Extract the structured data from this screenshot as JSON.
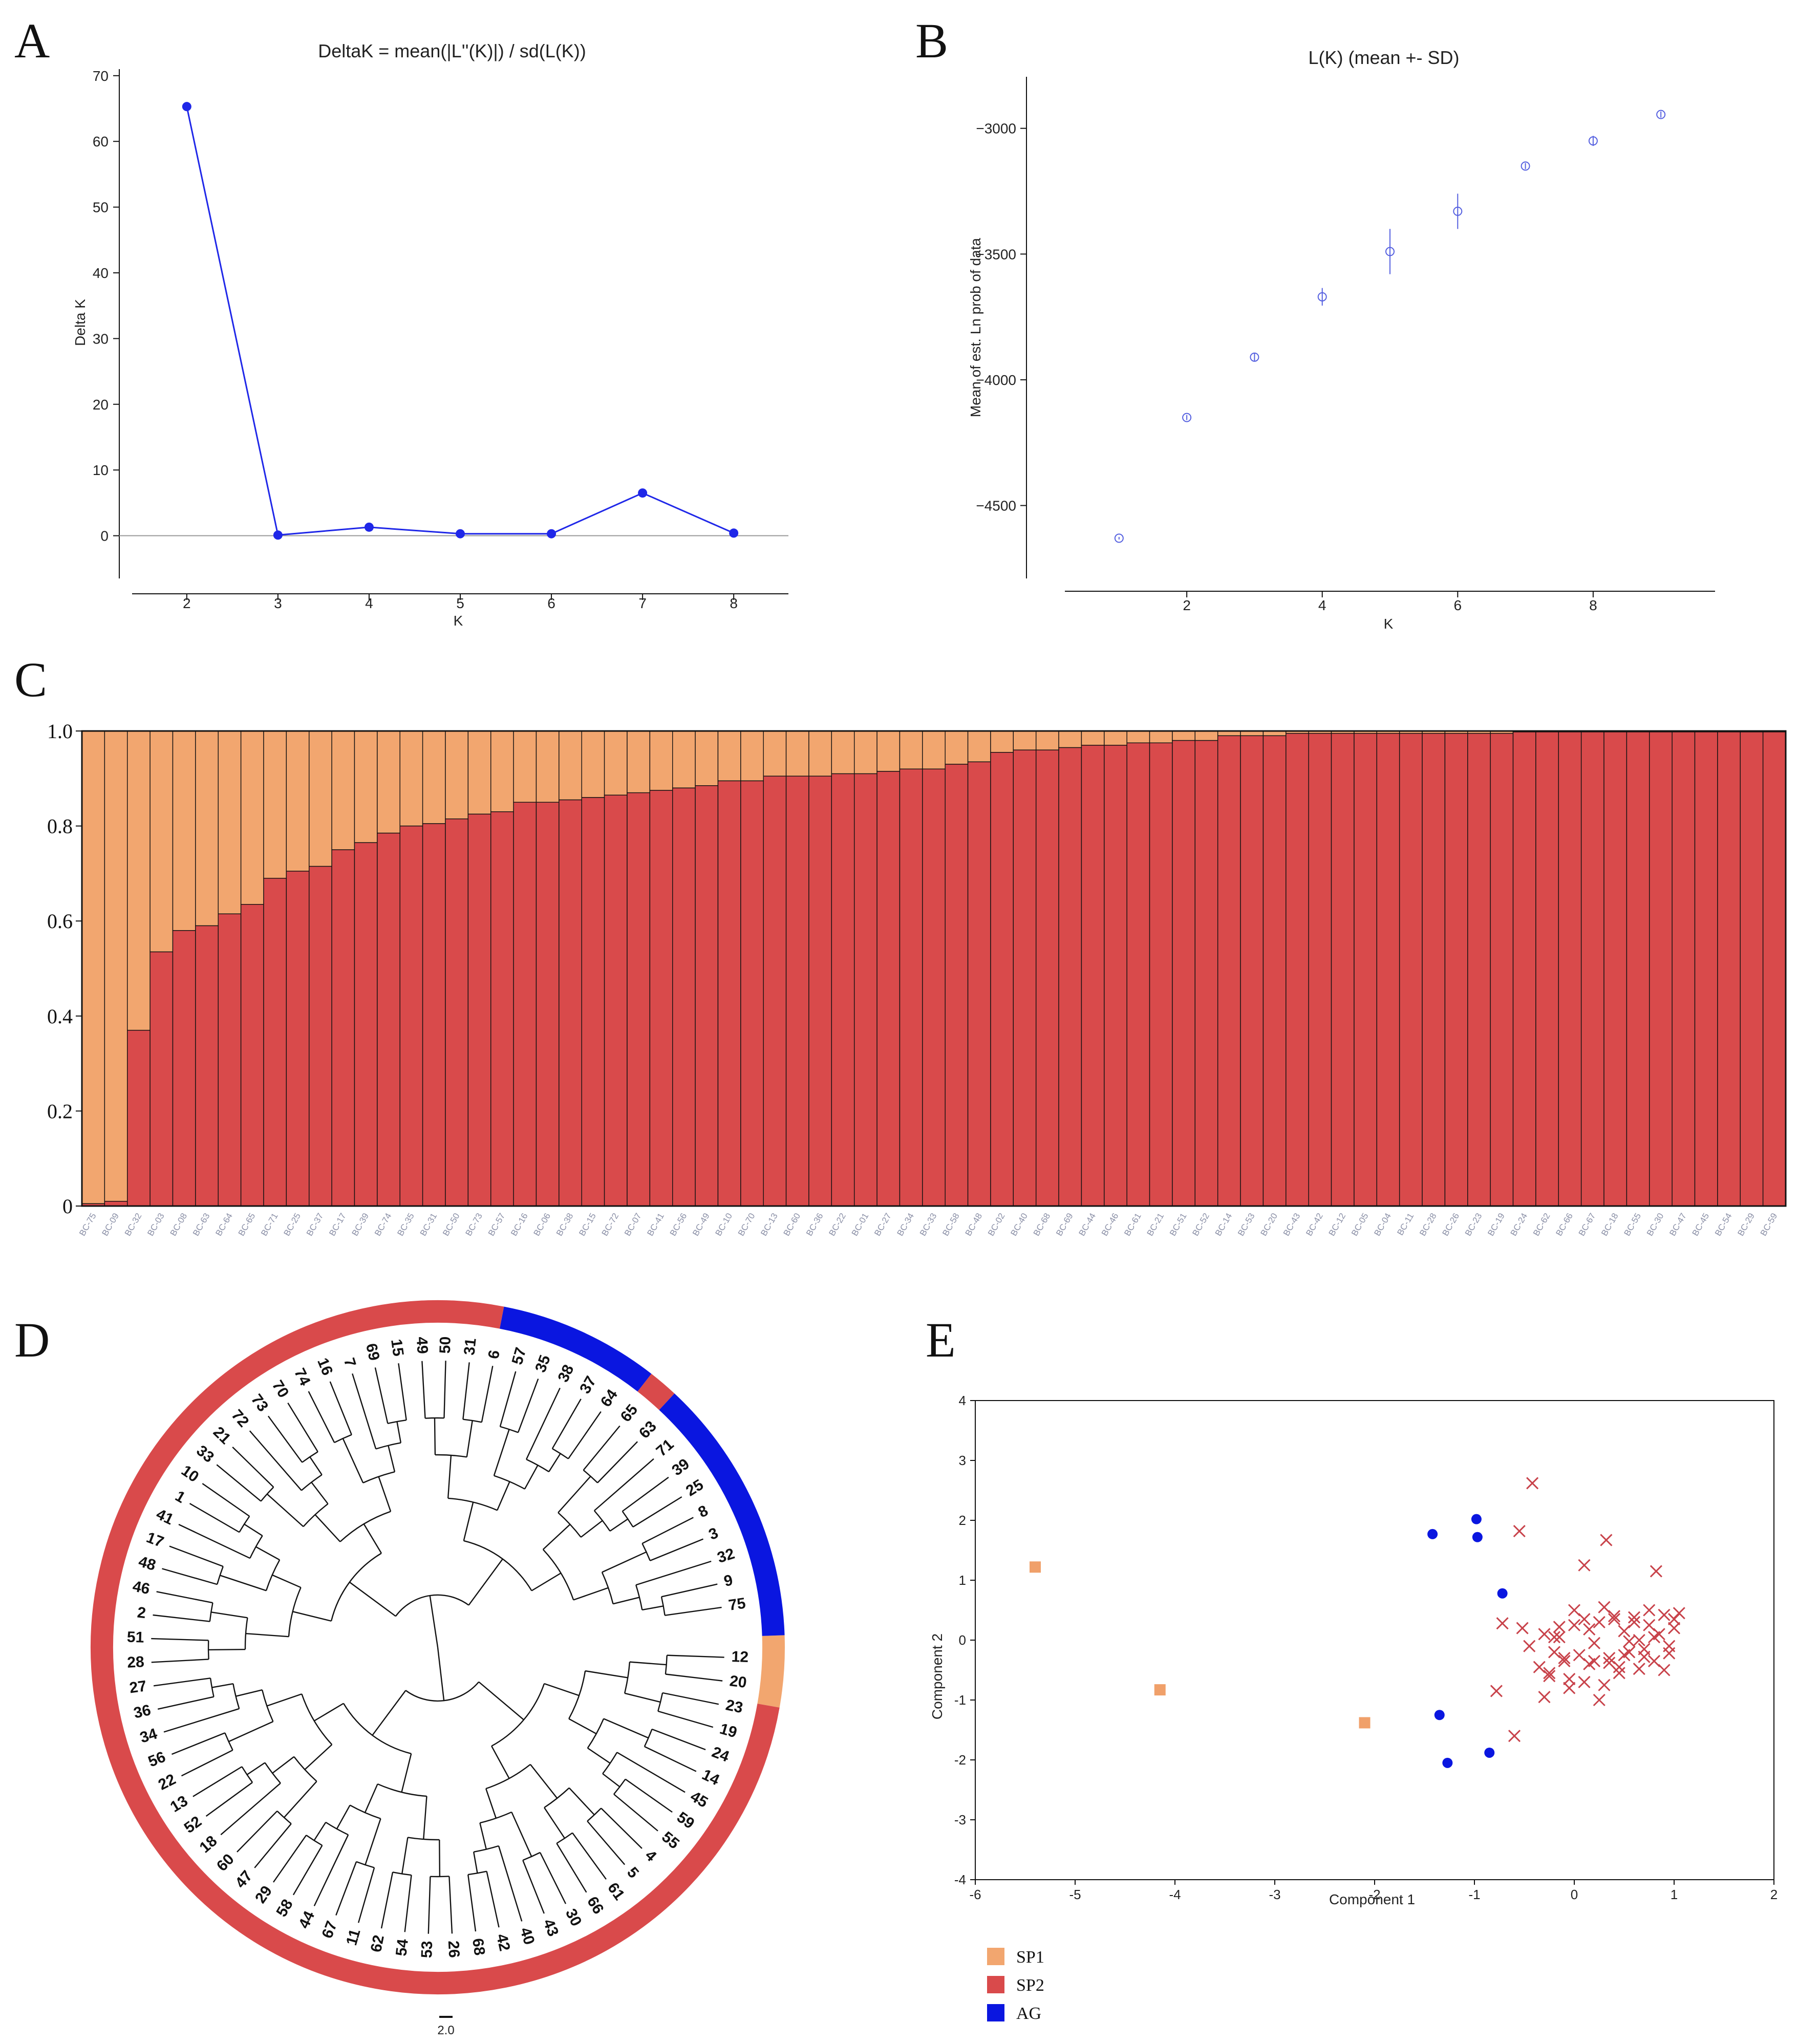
{
  "panel_labels": {
    "a": "A",
    "b": "B",
    "c": "C",
    "d": "D",
    "e": "E"
  },
  "colors": {
    "sp1": "#f2a66f",
    "sp2": "#d94a4b",
    "ag": "#0a16e0",
    "line_blue": "#1f27e8",
    "open_circle": "#5560e0",
    "cross": "#c8424a",
    "square": "#f0a06a"
  },
  "chart_data": [
    {
      "id": "A",
      "type": "line",
      "title": "DeltaK = mean(|L''(K)|) / sd(L(K))",
      "xlabel": "K",
      "ylabel": "Delta K",
      "x": [
        2,
        3,
        4,
        5,
        6,
        7,
        8
      ],
      "values": [
        65.3,
        0.1,
        1.3,
        0.3,
        0.3,
        6.5,
        0.4
      ],
      "xlim": [
        1.4,
        8.6
      ],
      "ylim": [
        -6.5,
        71
      ],
      "xticks": [
        "2",
        "3",
        "4",
        "5",
        "6",
        "7",
        "8"
      ],
      "yticks": [
        "0",
        "10",
        "20",
        "30",
        "40",
        "50",
        "60",
        "70"
      ]
    },
    {
      "id": "B",
      "type": "scatter",
      "title": "L(K) (mean +- SD)",
      "xlabel": "K",
      "ylabel": "Mean of est. Ln prob of data",
      "x": [
        1,
        2,
        3,
        4,
        5,
        6,
        7,
        8,
        9
      ],
      "values": [
        -4630,
        -4150,
        -3910,
        -3670,
        -3490,
        -3330,
        -3150,
        -3050,
        -2945
      ],
      "sd": [
        5,
        10,
        15,
        35,
        90,
        70,
        12,
        20,
        12
      ],
      "xlim": [
        0.2,
        9.8
      ],
      "ylim": [
        -4790,
        -2795
      ],
      "xticks": [
        "2",
        "4",
        "6",
        "8"
      ],
      "yticks": [
        "-3000",
        "-3500",
        "-4000",
        "-4500"
      ]
    },
    {
      "id": "C",
      "type": "bar",
      "stacked": true,
      "ylim": [
        0,
        1
      ],
      "yticks": [
        "0",
        "0.2",
        "0.4",
        "0.6",
        "0.8",
        "1.0"
      ],
      "series": [
        {
          "name": "SP2 (red)",
          "color": "#d94a4b"
        },
        {
          "name": "SP1 (orange)",
          "color": "#f2a66f"
        }
      ],
      "categories": [
        "BC-75",
        "BC-09",
        "BC-32",
        "BC-03",
        "BC-08",
        "BC-63",
        "BC-64",
        "BC-65",
        "BC-71",
        "BC-25",
        "BC-37",
        "BC-17",
        "BC-39",
        "BC-74",
        "BC-35",
        "BC-31",
        "BC-50",
        "BC-73",
        "BC-57",
        "BC-16",
        "BC-06",
        "BC-38",
        "BC-15",
        "BC-72",
        "BC-07",
        "BC-41",
        "BC-56",
        "BC-49",
        "BC-10",
        "BC-70",
        "BC-13",
        "BC-60",
        "BC-36",
        "BC-22",
        "BC-01",
        "BC-27",
        "BC-34",
        "BC-33",
        "BC-58",
        "BC-48",
        "BC-02",
        "BC-40",
        "BC-68",
        "BC-69",
        "BC-44",
        "BC-46",
        "BC-61",
        "BC-21",
        "BC-51",
        "BC-52",
        "BC-14",
        "BC-53",
        "BC-20",
        "BC-43",
        "BC-42",
        "BC-12",
        "BC-05",
        "BC-04",
        "BC-11",
        "BC-28",
        "BC-26",
        "BC-23",
        "BC-19",
        "BC-24",
        "BC-62",
        "BC-66",
        "BC-67",
        "BC-18",
        "BC-55",
        "BC-30",
        "BC-47",
        "BC-45",
        "BC-54",
        "BC-29",
        "BC-59"
      ],
      "values": [
        0.005,
        0.01,
        0.37,
        0.535,
        0.58,
        0.59,
        0.615,
        0.635,
        0.69,
        0.705,
        0.715,
        0.75,
        0.765,
        0.785,
        0.8,
        0.805,
        0.815,
        0.825,
        0.83,
        0.85,
        0.85,
        0.855,
        0.86,
        0.865,
        0.87,
        0.875,
        0.88,
        0.885,
        0.895,
        0.895,
        0.905,
        0.905,
        0.905,
        0.91,
        0.91,
        0.915,
        0.92,
        0.92,
        0.93,
        0.935,
        0.955,
        0.96,
        0.96,
        0.965,
        0.97,
        0.97,
        0.975,
        0.975,
        0.98,
        0.98,
        0.99,
        0.99,
        0.99,
        0.995,
        0.995,
        0.995,
        0.995,
        0.995,
        0.995,
        0.995,
        0.995,
        0.995,
        0.995,
        0.998,
        0.998,
        0.998,
        0.998,
        0.998,
        0.998,
        0.998,
        0.998,
        0.998,
        0.998,
        0.998,
        0.998
      ]
    },
    {
      "id": "D",
      "type": "dendrogram",
      "leaves": [
        "75",
        "9",
        "32",
        "3",
        "8",
        "25",
        "39",
        "71",
        "63",
        "65",
        "64",
        "37",
        "38",
        "35",
        "57",
        "6",
        "31",
        "50",
        "49",
        "15",
        "69",
        "7",
        "16",
        "74",
        "70",
        "73",
        "72",
        "21",
        "33",
        "10",
        "1",
        "41",
        "17",
        "48",
        "46",
        "2",
        "51",
        "28",
        "27",
        "36",
        "34",
        "56",
        "22",
        "13",
        "52",
        "18",
        "60",
        "47",
        "29",
        "58",
        "44",
        "67",
        "11",
        "62",
        "54",
        "53",
        "26",
        "68",
        "42",
        "40",
        "43",
        "30",
        "66",
        "61",
        "5",
        "4",
        "55",
        "59",
        "45",
        "14",
        "24",
        "19",
        "23",
        "20",
        "12"
      ],
      "ring": [
        "SP1",
        "AG",
        "SP2",
        "AG",
        "SP2"
      ],
      "scale_label": "2.0"
    },
    {
      "id": "E",
      "type": "scatter",
      "xlabel": "Component 1",
      "ylabel": "Component 2",
      "xlim": [
        -6,
        2
      ],
      "ylim": [
        -4,
        4
      ],
      "xticks": [
        "-6",
        "-5",
        "-4",
        "-3",
        "-2",
        "-1",
        "0",
        "1",
        "2"
      ],
      "yticks": [
        "4",
        "3",
        "2",
        "1",
        "0",
        "-1",
        "-2",
        "-3",
        "-4"
      ],
      "series": [
        {
          "name": "SP1",
          "marker": "square",
          "x": [
            -5.4,
            -4.15,
            -2.1
          ],
          "y": [
            1.22,
            -0.83,
            -1.38
          ]
        },
        {
          "name": "AG",
          "marker": "circle",
          "x": [
            -1.42,
            -0.98,
            -0.97,
            -0.72,
            -1.35,
            -1.27,
            -0.85
          ],
          "y": [
            1.77,
            2.02,
            1.72,
            0.78,
            -1.25,
            -2.05,
            -1.88
          ]
        },
        {
          "name": "SP2",
          "marker": "cross",
          "x": [
            -0.42,
            -0.55,
            0.32,
            0.1,
            0.82,
            -0.72,
            -0.78,
            -0.6,
            -0.45,
            -0.52,
            -0.35,
            -0.3,
            -0.25,
            -0.2,
            -0.15,
            -0.1,
            -0.05,
            0.0,
            0.05,
            0.1,
            0.15,
            0.2,
            0.25,
            0.3,
            0.35,
            0.4,
            0.45,
            0.5,
            0.55,
            0.6,
            0.65,
            0.7,
            0.75,
            0.8,
            0.85,
            0.9,
            0.95,
            1.0,
            1.05,
            -0.3,
            -0.2,
            -0.1,
            0.0,
            0.1,
            0.2,
            0.3,
            0.4,
            0.5,
            0.6,
            0.7,
            0.8,
            0.9,
            1.0,
            -0.25,
            -0.05,
            0.15,
            0.35,
            0.55,
            0.75,
            0.95,
            0.25,
            0.45,
            0.65,
            -0.15
          ],
          "y": [
            2.62,
            1.82,
            1.67,
            1.25,
            1.15,
            0.28,
            -0.85,
            -1.6,
            -0.1,
            0.2,
            -0.45,
            0.1,
            -0.6,
            -0.2,
            0.05,
            -0.35,
            -0.65,
            0.5,
            -0.25,
            0.35,
            -0.4,
            -0.05,
            0.3,
            -0.75,
            -0.3,
            0.4,
            -0.55,
            0.15,
            -0.2,
            0.38,
            -0.48,
            -0.28,
            0.25,
            -0.35,
            0.1,
            0.42,
            -0.1,
            0.2,
            0.45,
            -0.95,
            0.05,
            -0.3,
            0.25,
            -0.7,
            -0.35,
            0.55,
            0.35,
            -0.25,
            0.3,
            -0.15,
            0.05,
            -0.5,
            0.35,
            -0.55,
            -0.8,
            0.18,
            -0.38,
            -0.02,
            0.5,
            -0.22,
            -1.0,
            -0.45,
            0.0,
            0.22
          ]
        }
      ],
      "legend": [
        "SP1",
        "SP2",
        "AG"
      ],
      "legend_placement": "bottom-left"
    }
  ]
}
